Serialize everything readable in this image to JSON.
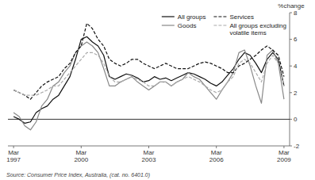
{
  "chart_data": {
    "type": "line",
    "ylabel": "%change",
    "source": "Source: Consumer Price Index, Australia, (cat. no. 6401.0)",
    "ylim": [
      -2,
      8
    ],
    "yticks": [
      -2,
      0,
      2,
      4,
      6,
      8
    ],
    "legend": "upper right",
    "categories": [
      "Mar\n1997",
      null,
      null,
      null,
      null,
      null,
      null,
      null,
      null,
      null,
      null,
      null,
      "Mar\n2000",
      null,
      null,
      null,
      null,
      null,
      null,
      null,
      null,
      null,
      null,
      null,
      "Mar\n2003",
      null,
      null,
      null,
      null,
      null,
      null,
      null,
      null,
      null,
      null,
      null,
      "Mar\n2006",
      null,
      null,
      null,
      null,
      null,
      null,
      null,
      null,
      null,
      null,
      null,
      "Mar\n2009"
    ],
    "series": [
      {
        "name": "All groups",
        "color": "#111111",
        "line_style": "solid",
        "values": [
          0.2,
          0.0,
          -0.3,
          -0.2,
          0.5,
          0.8,
          1.0,
          1.5,
          1.8,
          2.5,
          3.2,
          4.5,
          6.0,
          6.2,
          5.8,
          5.5,
          4.8,
          3.2,
          3.0,
          3.2,
          3.4,
          3.3,
          3.1,
          2.8,
          2.9,
          3.2,
          3.0,
          3.1,
          2.9,
          3.1,
          3.3,
          3.5,
          3.4,
          3.2,
          3.0,
          2.7,
          2.5,
          2.8,
          3.3,
          3.8,
          4.5,
          5.0,
          4.8,
          4.2,
          3.5,
          4.5,
          5.0,
          4.5,
          2.5
        ]
      },
      {
        "name": "Goods",
        "color": "#888888",
        "line_style": "solid",
        "values": [
          0.5,
          0.2,
          -0.5,
          -0.8,
          -0.2,
          1.0,
          1.5,
          2.5,
          2.8,
          3.5,
          4.0,
          5.0,
          5.5,
          5.8,
          5.5,
          5.0,
          3.8,
          2.5,
          2.5,
          2.8,
          3.0,
          3.2,
          2.8,
          2.5,
          2.2,
          2.5,
          2.8,
          2.8,
          2.5,
          2.8,
          3.0,
          3.5,
          3.2,
          3.0,
          2.5,
          2.0,
          1.5,
          2.2,
          2.8,
          3.5,
          5.0,
          5.2,
          4.0,
          2.5,
          1.2,
          4.8,
          5.2,
          4.2,
          1.5
        ]
      },
      {
        "name": "Services",
        "color": "#111111",
        "line_style": "dashed",
        "values": [
          2.2,
          2.0,
          1.8,
          1.5,
          2.0,
          2.5,
          2.8,
          3.0,
          3.2,
          3.8,
          4.2,
          5.0,
          5.5,
          7.2,
          6.8,
          6.0,
          5.5,
          4.5,
          4.2,
          4.0,
          4.2,
          4.5,
          4.5,
          4.2,
          4.0,
          3.8,
          4.0,
          4.2,
          4.0,
          3.8,
          3.8,
          3.8,
          4.0,
          4.2,
          4.3,
          4.2,
          4.0,
          3.8,
          3.5,
          3.5,
          4.0,
          4.2,
          4.5,
          4.8,
          5.2,
          5.5,
          5.2,
          4.8,
          3.2
        ]
      },
      {
        "name": "All groups excluding\nvolatile items",
        "color": "#aaaaaa",
        "line_style": "dashed",
        "values": [
          2.2,
          2.0,
          1.8,
          1.8,
          1.8,
          2.0,
          2.2,
          2.5,
          2.5,
          3.0,
          3.5,
          4.0,
          4.5,
          5.0,
          5.0,
          4.8,
          4.2,
          3.2,
          2.8,
          2.8,
          3.0,
          3.2,
          3.0,
          2.8,
          2.5,
          2.5,
          2.8,
          2.8,
          2.5,
          2.8,
          3.0,
          3.2,
          3.0,
          2.8,
          2.5,
          2.2,
          2.0,
          2.2,
          2.8,
          3.2,
          4.2,
          4.5,
          4.2,
          3.5,
          2.8,
          4.2,
          4.8,
          4.2,
          2.5
        ]
      }
    ]
  }
}
